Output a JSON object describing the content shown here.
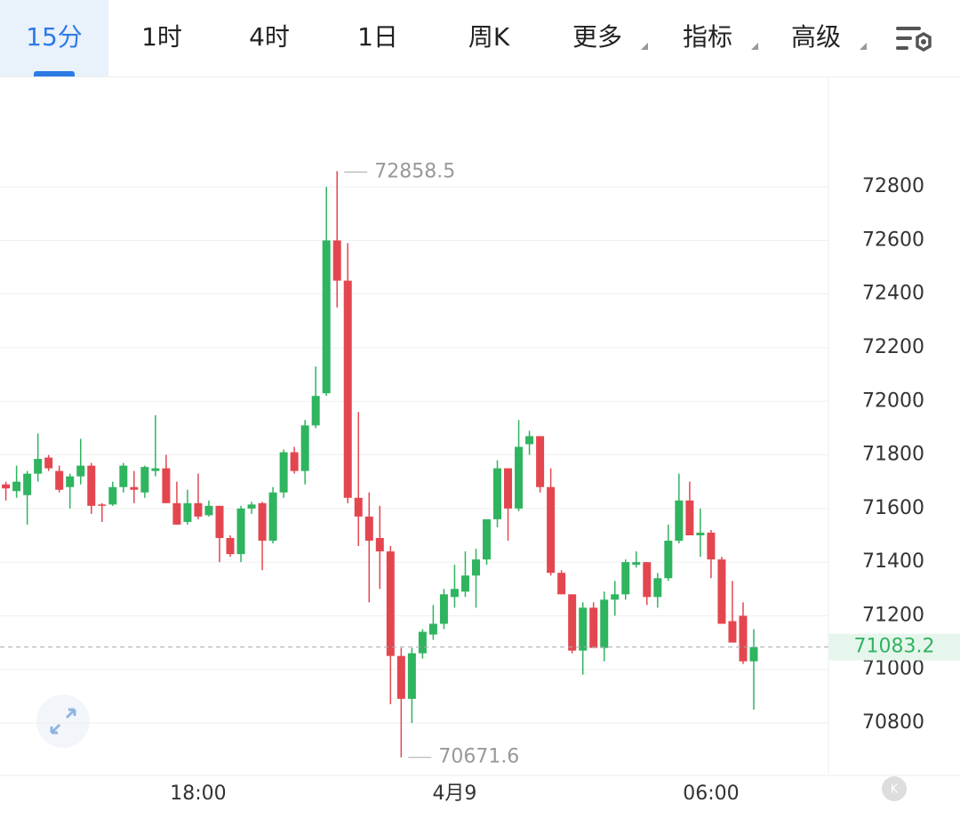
{
  "tabs": [
    "15分",
    "1时",
    "4时",
    "1日",
    "周K",
    "更多",
    "指标",
    "高级"
  ],
  "chart_data": {
    "type": "candlestick",
    "categories": [
      null,
      null,
      null,
      null,
      null,
      null,
      null,
      null,
      null,
      null,
      null,
      null,
      null,
      null,
      null,
      null,
      null,
      null,
      "18:00",
      null,
      null,
      null,
      null,
      null,
      null,
      null,
      null,
      null,
      null,
      null,
      null,
      null,
      null,
      null,
      null,
      null,
      null,
      null,
      null,
      null,
      null,
      null,
      "4月9",
      null,
      null,
      null,
      null,
      null,
      null,
      null,
      null,
      null,
      null,
      null,
      null,
      null,
      null,
      null,
      null,
      null,
      null,
      null,
      null,
      null,
      null,
      null,
      "06:00",
      null,
      null,
      null,
      null
    ],
    "open": [
      71690,
      71665,
      71650,
      71730,
      71790,
      71740,
      71680,
      71720,
      71760,
      71615,
      71615,
      71680,
      71680,
      71660,
      71740,
      71750,
      71620,
      71550,
      71620,
      71575,
      71610,
      71490,
      71430,
      71600,
      71620,
      71480,
      71660,
      71810,
      71740,
      71910,
      72030,
      72600,
      72450,
      71640,
      71570,
      71490,
      71440,
      71050,
      70890,
      71060,
      71130,
      71170,
      71270,
      71290,
      71350,
      71410,
      71560,
      71750,
      71600,
      71840,
      71870,
      71680,
      71360,
      71280,
      71070,
      71230,
      71080,
      71260,
      71280,
      71390,
      71400,
      71270,
      71340,
      71480,
      71630,
      71500,
      71510,
      71410,
      71180,
      71200,
      71030
    ],
    "high": [
      71700,
      71760,
      71740,
      71880,
      71800,
      71760,
      71730,
      71860,
      71770,
      71620,
      71700,
      71770,
      71740,
      71760,
      71948,
      71800,
      71700,
      71670,
      71730,
      71630,
      71610,
      71500,
      71610,
      71625,
      71625,
      71680,
      71820,
      71830,
      71930,
      72130,
      72800,
      72858.5,
      72590,
      71960,
      71660,
      71610,
      71460,
      71080,
      71080,
      71150,
      71240,
      71300,
      71390,
      71440,
      71450,
      71560,
      71780,
      71750,
      71930,
      71890,
      71870,
      71750,
      71370,
      71280,
      71250,
      71250,
      71290,
      71330,
      71410,
      71440,
      71400,
      71360,
      71540,
      71730,
      71700,
      71600,
      71520,
      71420,
      71330,
      71250,
      71150
    ],
    "low": [
      71630,
      71640,
      71540,
      71700,
      71740,
      71660,
      71600,
      71690,
      71580,
      71550,
      71610,
      71660,
      71620,
      71640,
      71720,
      71620,
      71540,
      71540,
      71560,
      71570,
      71400,
      71420,
      71400,
      71580,
      71370,
      71470,
      71640,
      71730,
      71690,
      71900,
      72020,
      72350,
      71620,
      71460,
      71250,
      71300,
      70870,
      70671.6,
      70800,
      71040,
      71110,
      71150,
      71230,
      71270,
      71230,
      71390,
      71530,
      71480,
      71590,
      71800,
      71660,
      71350,
      71280,
      71060,
      70980,
      71080,
      71030,
      71200,
      71260,
      71380,
      71240,
      71230,
      71330,
      71470,
      71500,
      71420,
      71340,
      71170,
      71100,
      71020,
      70850
    ],
    "close": [
      71675,
      71700,
      71730,
      71785,
      71750,
      71670,
      71720,
      71760,
      71610,
      71610,
      71680,
      71760,
      71670,
      71755,
      71750,
      71620,
      71540,
      71620,
      71570,
      71610,
      71490,
      71430,
      71600,
      71615,
      71480,
      71660,
      71810,
      71740,
      71910,
      72020,
      72600,
      72450,
      71640,
      71570,
      71480,
      71440,
      71050,
      70890,
      71060,
      71140,
      71170,
      71280,
      71300,
      71350,
      71410,
      71560,
      71750,
      71600,
      71830,
      71870,
      71680,
      71360,
      71280,
      71070,
      71230,
      71080,
      71260,
      71280,
      71400,
      71400,
      71270,
      71340,
      71480,
      71630,
      71500,
      71510,
      71410,
      71170,
      71100,
      71030,
      71083.2
    ],
    "up_color": "#2fb45f",
    "down_color": "#e4464f",
    "ylim": [
      70611,
      73205
    ],
    "yticks": [
      70800,
      71000,
      71200,
      71400,
      71600,
      71800,
      72000,
      72200,
      72400,
      72600,
      72800
    ],
    "grid": true
  }
}
